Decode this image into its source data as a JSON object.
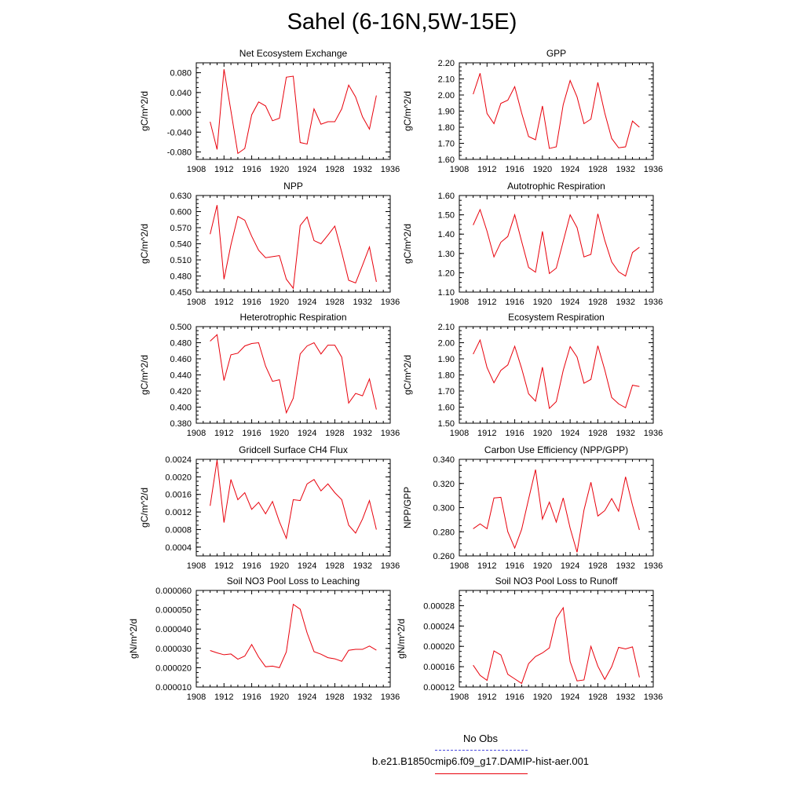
{
  "title": "Sahel (6-16N,5W-15E)",
  "legend": {
    "obs_label": "No Obs",
    "obs_color": "#4a4adf",
    "model_label": "b.e21.B1850cmip6.f09_g17.DAMIP-hist-aer.001",
    "model_color": "#e8000b"
  },
  "chart_data": [
    {
      "type": "line",
      "title": "Net Ecosystem Exchange",
      "ylabel": "gC/m^2/d",
      "xlim": [
        1908,
        1936
      ],
      "xticks": [
        "1908",
        "1912",
        "1916",
        "1920",
        "1924",
        "1928",
        "1932",
        "1936"
      ],
      "ylim": [
        -0.095,
        0.1
      ],
      "yticks": [
        "-0.080",
        "-0.040",
        "0.000",
        "0.040",
        "0.080"
      ],
      "x": [
        1910,
        1911,
        1912,
        1913,
        1914,
        1915,
        1916,
        1917,
        1918,
        1919,
        1920,
        1921,
        1922,
        1923,
        1924,
        1925,
        1926,
        1927,
        1928,
        1929,
        1930,
        1931,
        1932,
        1933,
        1934
      ],
      "series": [
        {
          "values": [
            -0.019,
            -0.075,
            0.087,
            0.003,
            -0.083,
            -0.073,
            -0.005,
            0.021,
            0.013,
            -0.017,
            -0.012,
            0.071,
            0.073,
            -0.061,
            -0.064,
            0.007,
            -0.024,
            -0.019,
            -0.019,
            0.007,
            0.055,
            0.031,
            -0.009,
            -0.034,
            0.034
          ]
        }
      ]
    },
    {
      "type": "line",
      "title": "GPP",
      "ylabel": "gC/m^2/d",
      "xlim": [
        1908,
        1936
      ],
      "xticks": [
        "1908",
        "1912",
        "1916",
        "1920",
        "1924",
        "1928",
        "1932",
        "1936"
      ],
      "ylim": [
        1.6,
        2.2
      ],
      "yticks": [
        "1.60",
        "1.70",
        "1.80",
        "1.90",
        "2.00",
        "2.10",
        "2.20"
      ],
      "x": [
        1910,
        1911,
        1912,
        1913,
        1914,
        1915,
        1916,
        1917,
        1918,
        1919,
        1920,
        1921,
        1922,
        1923,
        1924,
        1925,
        1926,
        1927,
        1928,
        1929,
        1930,
        1931,
        1932,
        1933,
        1934
      ],
      "series": [
        {
          "values": [
            2.005,
            2.135,
            1.885,
            1.822,
            1.948,
            1.968,
            2.052,
            1.888,
            1.742,
            1.722,
            1.932,
            1.668,
            1.678,
            1.94,
            2.09,
            1.988,
            1.822,
            1.85,
            2.078,
            1.888,
            1.73,
            1.672,
            1.678,
            1.838,
            1.8
          ]
        }
      ]
    },
    {
      "type": "line",
      "title": "NPP",
      "ylabel": "gC/m^2/d",
      "xlim": [
        1908,
        1936
      ],
      "xticks": [
        "1908",
        "1912",
        "1916",
        "1920",
        "1924",
        "1928",
        "1932",
        "1936"
      ],
      "ylim": [
        0.45,
        0.63
      ],
      "yticks": [
        "0.450",
        "0.480",
        "0.510",
        "0.540",
        "0.570",
        "0.600",
        "0.630"
      ],
      "x": [
        1910,
        1911,
        1912,
        1913,
        1914,
        1915,
        1916,
        1917,
        1918,
        1919,
        1920,
        1921,
        1922,
        1923,
        1924,
        1925,
        1926,
        1927,
        1928,
        1929,
        1930,
        1931,
        1932,
        1933,
        1934
      ],
      "series": [
        {
          "values": [
            0.558,
            0.612,
            0.474,
            0.538,
            0.591,
            0.584,
            0.554,
            0.528,
            0.514,
            0.516,
            0.518,
            0.474,
            0.457,
            0.574,
            0.59,
            0.546,
            0.54,
            0.556,
            0.573,
            0.524,
            0.472,
            0.467,
            0.5,
            0.534,
            0.469
          ]
        }
      ]
    },
    {
      "type": "line",
      "title": "Autotrophic Respiration",
      "ylabel": "gC/m^2/d",
      "xlim": [
        1908,
        1936
      ],
      "xticks": [
        "1908",
        "1912",
        "1916",
        "1920",
        "1924",
        "1928",
        "1932",
        "1936"
      ],
      "ylim": [
        1.1,
        1.6
      ],
      "yticks": [
        "1.10",
        "1.20",
        "1.30",
        "1.40",
        "1.50",
        "1.60"
      ],
      "x": [
        1910,
        1911,
        1912,
        1913,
        1914,
        1915,
        1916,
        1917,
        1918,
        1919,
        1920,
        1921,
        1922,
        1923,
        1924,
        1925,
        1926,
        1927,
        1928,
        1929,
        1930,
        1931,
        1932,
        1933,
        1934
      ],
      "series": [
        {
          "values": [
            1.447,
            1.527,
            1.415,
            1.282,
            1.358,
            1.388,
            1.5,
            1.362,
            1.228,
            1.203,
            1.414,
            1.196,
            1.224,
            1.362,
            1.5,
            1.434,
            1.282,
            1.295,
            1.505,
            1.368,
            1.256,
            1.205,
            1.183,
            1.305,
            1.332
          ]
        }
      ]
    },
    {
      "type": "line",
      "title": "Heterotrophic Respiration",
      "ylabel": "gC/m^2/d",
      "xlim": [
        1908,
        1936
      ],
      "xticks": [
        "1908",
        "1912",
        "1916",
        "1920",
        "1924",
        "1928",
        "1932",
        "1936"
      ],
      "ylim": [
        0.38,
        0.5
      ],
      "yticks": [
        "0.380",
        "0.400",
        "0.420",
        "0.440",
        "0.460",
        "0.480",
        "0.500"
      ],
      "x": [
        1910,
        1911,
        1912,
        1913,
        1914,
        1915,
        1916,
        1917,
        1918,
        1919,
        1920,
        1921,
        1922,
        1923,
        1924,
        1925,
        1926,
        1927,
        1928,
        1929,
        1930,
        1931,
        1932,
        1933,
        1934
      ],
      "series": [
        {
          "values": [
            0.482,
            0.49,
            0.433,
            0.465,
            0.467,
            0.476,
            0.479,
            0.48,
            0.451,
            0.432,
            0.434,
            0.393,
            0.411,
            0.466,
            0.476,
            0.48,
            0.466,
            0.477,
            0.477,
            0.462,
            0.405,
            0.417,
            0.414,
            0.435,
            0.397
          ]
        }
      ]
    },
    {
      "type": "line",
      "title": "Ecosystem Respiration",
      "ylabel": "gC/m^2/d",
      "xlim": [
        1908,
        1936
      ],
      "xticks": [
        "1908",
        "1912",
        "1916",
        "1920",
        "1924",
        "1928",
        "1932",
        "1936"
      ],
      "ylim": [
        1.5,
        2.1
      ],
      "yticks": [
        "1.50",
        "1.60",
        "1.70",
        "1.80",
        "1.90",
        "2.00",
        "2.10"
      ],
      "x": [
        1910,
        1911,
        1912,
        1913,
        1914,
        1915,
        1916,
        1917,
        1918,
        1919,
        1920,
        1921,
        1922,
        1923,
        1924,
        1925,
        1926,
        1927,
        1928,
        1929,
        1930,
        1931,
        1932,
        1933,
        1934
      ],
      "series": [
        {
          "values": [
            1.929,
            2.017,
            1.846,
            1.751,
            1.828,
            1.862,
            1.978,
            1.84,
            1.683,
            1.637,
            1.848,
            1.592,
            1.634,
            1.828,
            1.976,
            1.911,
            1.748,
            1.772,
            1.981,
            1.831,
            1.66,
            1.62,
            1.596,
            1.736,
            1.728
          ]
        }
      ]
    },
    {
      "type": "line",
      "title": "Gridcell Surface CH4 Flux",
      "ylabel": "gC/m^2/d",
      "xlim": [
        1908,
        1936
      ],
      "xticks": [
        "1908",
        "1912",
        "1916",
        "1920",
        "1924",
        "1928",
        "1932",
        "1936"
      ],
      "ylim": [
        0.0002,
        0.0024
      ],
      "yticks": [
        "0.0004",
        "0.0008",
        "0.0012",
        "0.0016",
        "0.0020",
        "0.0024"
      ],
      "x": [
        1910,
        1911,
        1912,
        1913,
        1914,
        1915,
        1916,
        1917,
        1918,
        1919,
        1920,
        1921,
        1922,
        1923,
        1924,
        1925,
        1926,
        1927,
        1928,
        1929,
        1930,
        1931,
        1932,
        1933,
        1934
      ],
      "series": [
        {
          "values": [
            0.00134,
            0.00238,
            0.00096,
            0.00194,
            0.00148,
            0.00164,
            0.00126,
            0.00142,
            0.00116,
            0.00144,
            0.00098,
            0.0006,
            0.00148,
            0.00146,
            0.00184,
            0.00194,
            0.00168,
            0.00184,
            0.00164,
            0.00148,
            0.0009,
            0.00072,
            0.00104,
            0.00146,
            0.0008
          ]
        }
      ]
    },
    {
      "type": "line",
      "title": "Carbon Use Efficiency (NPP/GPP)",
      "ylabel": "NPP/GPP",
      "xlim": [
        1908,
        1936
      ],
      "xticks": [
        "1908",
        "1912",
        "1916",
        "1920",
        "1924",
        "1928",
        "1932",
        "1936"
      ],
      "ylim": [
        0.26,
        0.34
      ],
      "yticks": [
        "0.260",
        "0.280",
        "0.300",
        "0.320",
        "0.340"
      ],
      "x": [
        1910,
        1911,
        1912,
        1913,
        1914,
        1915,
        1916,
        1917,
        1918,
        1919,
        1920,
        1921,
        1922,
        1923,
        1924,
        1925,
        1926,
        1927,
        1928,
        1929,
        1930,
        1931,
        1932,
        1933,
        1934
      ],
      "series": [
        {
          "values": [
            0.2825,
            0.2865,
            0.2825,
            0.308,
            0.3085,
            0.28,
            0.2665,
            0.282,
            0.307,
            0.3315,
            0.2905,
            0.3045,
            0.288,
            0.308,
            0.283,
            0.263,
            0.298,
            0.321,
            0.293,
            0.2975,
            0.3075,
            0.297,
            0.3255,
            0.302,
            0.2815
          ]
        }
      ]
    },
    {
      "type": "line",
      "title": "Soil NO3 Pool Loss to Leaching",
      "ylabel": "gN/m^2/d",
      "xlim": [
        1908,
        1936
      ],
      "xticks": [
        "1908",
        "1912",
        "1916",
        "1920",
        "1924",
        "1928",
        "1932",
        "1936"
      ],
      "ylim": [
        1e-05,
        6e-05
      ],
      "yticks": [
        "0.000010",
        "0.000020",
        "0.000030",
        "0.000040",
        "0.000050",
        "0.000060"
      ],
      "x": [
        1910,
        1911,
        1912,
        1913,
        1914,
        1915,
        1916,
        1917,
        1918,
        1919,
        1920,
        1921,
        1922,
        1923,
        1924,
        1925,
        1926,
        1927,
        1928,
        1929,
        1930,
        1931,
        1932,
        1933,
        1934
      ],
      "series": [
        {
          "values": [
            2.89e-05,
            2.77e-05,
            2.67e-05,
            2.71e-05,
            2.44e-05,
            2.6e-05,
            3.2e-05,
            2.55e-05,
            2.05e-05,
            2.08e-05,
            2e-05,
            2.82e-05,
            5.28e-05,
            5.03e-05,
            3.8e-05,
            2.83e-05,
            2.7e-05,
            2.52e-05,
            2.46e-05,
            2.33e-05,
            2.9e-05,
            2.95e-05,
            2.95e-05,
            3.12e-05,
            2.91e-05
          ]
        }
      ]
    },
    {
      "type": "line",
      "title": "Soil NO3 Pool Loss to Runoff",
      "ylabel": "gN/m^2/d",
      "xlim": [
        1908,
        1936
      ],
      "xticks": [
        "1908",
        "1912",
        "1916",
        "1920",
        "1924",
        "1928",
        "1932",
        "1936"
      ],
      "ylim": [
        0.00012,
        0.00031
      ],
      "yticks": [
        "0.00012",
        "0.00016",
        "0.00020",
        "0.00024",
        "0.00028"
      ],
      "x": [
        1910,
        1911,
        1912,
        1913,
        1914,
        1915,
        1916,
        1917,
        1918,
        1919,
        1920,
        1921,
        1922,
        1923,
        1924,
        1925,
        1926,
        1927,
        1928,
        1929,
        1930,
        1931,
        1932,
        1933,
        1934
      ],
      "series": [
        {
          "values": [
            0.000163,
            0.000143,
            0.000133,
            0.000191,
            0.000183,
            0.000145,
            0.000136,
            0.000127,
            0.000166,
            0.00018,
            0.000187,
            0.000197,
            0.000255,
            0.000276,
            0.00017,
            0.000132,
            0.000134,
            0.0002,
            0.000161,
            0.000135,
            0.00016,
            0.000198,
            0.000195,
            0.000199,
            0.000139
          ]
        }
      ]
    }
  ]
}
